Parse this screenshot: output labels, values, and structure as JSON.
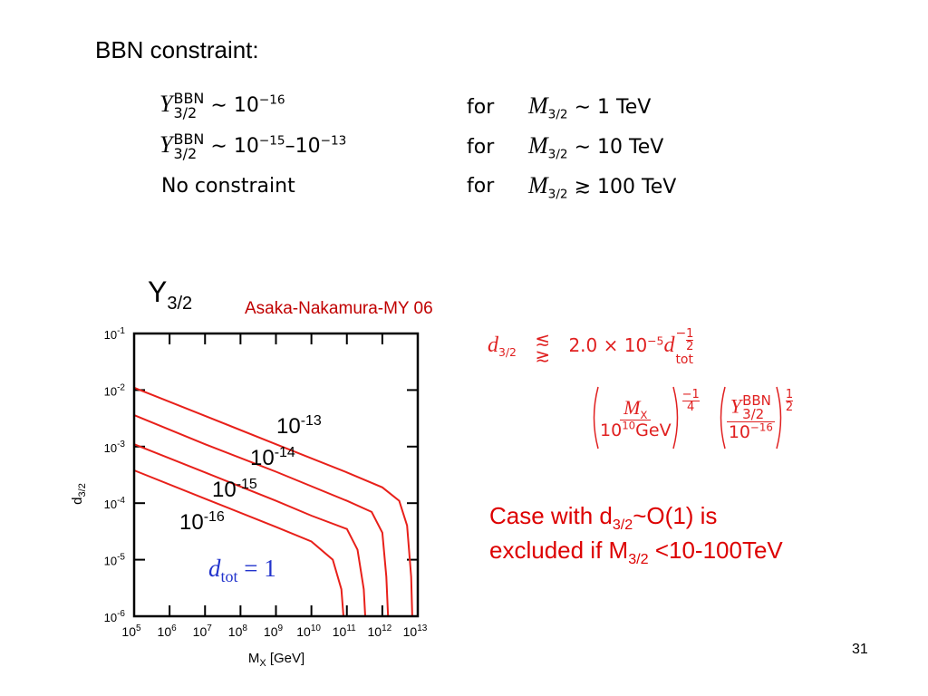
{
  "slide": {
    "heading": "BBN constraint:",
    "constraints": [
      {
        "y": "Y",
        "y_sup": "BBN",
        "y_sub": "3/2",
        "rel": "∼ 10",
        "rel_exp": "−16",
        "for": "for",
        "m": "M",
        "m_sub": "3/2",
        "cond": "∼ 1 TeV"
      },
      {
        "y": "Y",
        "y_sup": "BBN",
        "y_sub": "3/2",
        "rel": "∼ 10",
        "rel_exp": "−15",
        "rel2": "–10",
        "rel2_exp": "−13",
        "for": "for",
        "m": "M",
        "m_sub": "3/2",
        "cond": "∼ 10 TeV"
      },
      {
        "text": "No constraint",
        "for": "for",
        "m": "M",
        "m_sub": "3/2",
        "cond": "≳ 100 TeV"
      }
    ],
    "formula": {
      "d": "d",
      "d_sub": "3/2",
      "rel_top": "≲",
      "rel_bottom": "≳",
      "coef": "2.0 × 10",
      "coef_exp": "−5",
      "d2": "d",
      "d2_sub": "tot",
      "d2_exp_sign": "−",
      "d2_exp_num": "1",
      "d2_exp_den": "2",
      "mx": "M",
      "mx_sub": "X",
      "mx_den": "10",
      "mx_den_exp": "10",
      "mx_den_unit": "GeV",
      "pow1_sign": "−",
      "pow1_num": "1",
      "pow1_den": "4",
      "y": "Y",
      "y_sup": "BBN",
      "y_sub": "3/2",
      "y_den": "10",
      "y_den_exp": "−16",
      "pow2_num": "1",
      "pow2_den": "2"
    },
    "note": {
      "line1": "Case with d",
      "line1_sub": "3/2",
      "line1_end": "~O(1) is",
      "line2": "excluded if M",
      "line2_sub": "3/2",
      "line2_end": " <10-100TeV"
    },
    "page_number": "31"
  },
  "chart_data": {
    "type": "line",
    "title": "Y",
    "title_sub": "3/2",
    "subtitle": "Asaka-Nakamura-MY 06",
    "xlabel": "M",
    "xlabel_sub": "X",
    "xlabel_end": " [GeV]",
    "ylabel": "d",
    "ylabel_sub": "3/2",
    "annotation": "d",
    "annotation_sub": "tot",
    "annotation_end": " = 1",
    "xscale": "log",
    "yscale": "log",
    "xlim": [
      100000.0,
      10000000000000.0
    ],
    "ylim": [
      1e-06,
      0.1
    ],
    "xticks": [
      {
        "value": 100000.0,
        "label": "10",
        "sup": "5"
      },
      {
        "value": 1000000.0,
        "label": "10",
        "sup": "6"
      },
      {
        "value": 10000000.0,
        "label": "10",
        "sup": "7"
      },
      {
        "value": 100000000.0,
        "label": "10",
        "sup": "8"
      },
      {
        "value": 1000000000.0,
        "label": "10",
        "sup": "9"
      },
      {
        "value": 10000000000.0,
        "label": "10",
        "sup": "10"
      },
      {
        "value": 100000000000.0,
        "label": "10",
        "sup": "11"
      },
      {
        "value": 1000000000000.0,
        "label": "10",
        "sup": "12"
      },
      {
        "value": 10000000000000.0,
        "label": "10",
        "sup": "13"
      }
    ],
    "yticks": [
      {
        "value": 1e-06,
        "label": "10",
        "sup": "-6"
      },
      {
        "value": 1e-05,
        "label": "10",
        "sup": "-5"
      },
      {
        "value": 0.0001,
        "label": "10",
        "sup": "-4"
      },
      {
        "value": 0.001,
        "label": "10",
        "sup": "-3"
      },
      {
        "value": 0.01,
        "label": "10",
        "sup": "-2"
      },
      {
        "value": 0.1,
        "label": "10",
        "sup": "-1"
      }
    ],
    "series": [
      {
        "name": "10",
        "name_sup": "-13",
        "color": "#e8201a",
        "x": [
          100000.0,
          10000000.0,
          1000000000.0,
          100000000000.0,
          1000000000000.0,
          3000000000000.0,
          5000000000000.0,
          6500000000000.0,
          7000000000000.0
        ],
        "values": [
          0.011,
          0.0035,
          0.0011,
          0.00035,
          0.00019,
          0.00011,
          4e-05,
          5e-06,
          1e-06
        ]
      },
      {
        "name": "10",
        "name_sup": "-14",
        "color": "#e8201a",
        "x": [
          100000.0,
          10000000.0,
          1000000000.0,
          100000000000.0,
          500000000000.0,
          1000000000000.0,
          1300000000000.0,
          1450000000000.0
        ],
        "values": [
          0.0036,
          0.0011,
          0.00036,
          0.00011,
          7e-05,
          3e-05,
          5e-06,
          1e-06
        ]
      },
      {
        "name": "10",
        "name_sup": "-15",
        "color": "#e8201a",
        "x": [
          100000.0,
          10000000.0,
          1000000000.0,
          10000000000.0,
          100000000000.0,
          200000000000.0,
          300000000000.0,
          330000000000.0
        ],
        "values": [
          0.0011,
          0.00035,
          0.00011,
          6e-05,
          3.5e-05,
          1.5e-05,
          3e-06,
          1e-06
        ]
      },
      {
        "name": "10",
        "name_sup": "-16",
        "color": "#e8201a",
        "x": [
          100000.0,
          10000000.0,
          1000000000.0,
          10000000000.0,
          40000000000.0,
          70000000000.0,
          80000000000.0
        ],
        "values": [
          0.00038,
          0.00012,
          3.8e-05,
          2.1e-05,
          1e-05,
          3e-06,
          1e-06
        ]
      }
    ]
  }
}
